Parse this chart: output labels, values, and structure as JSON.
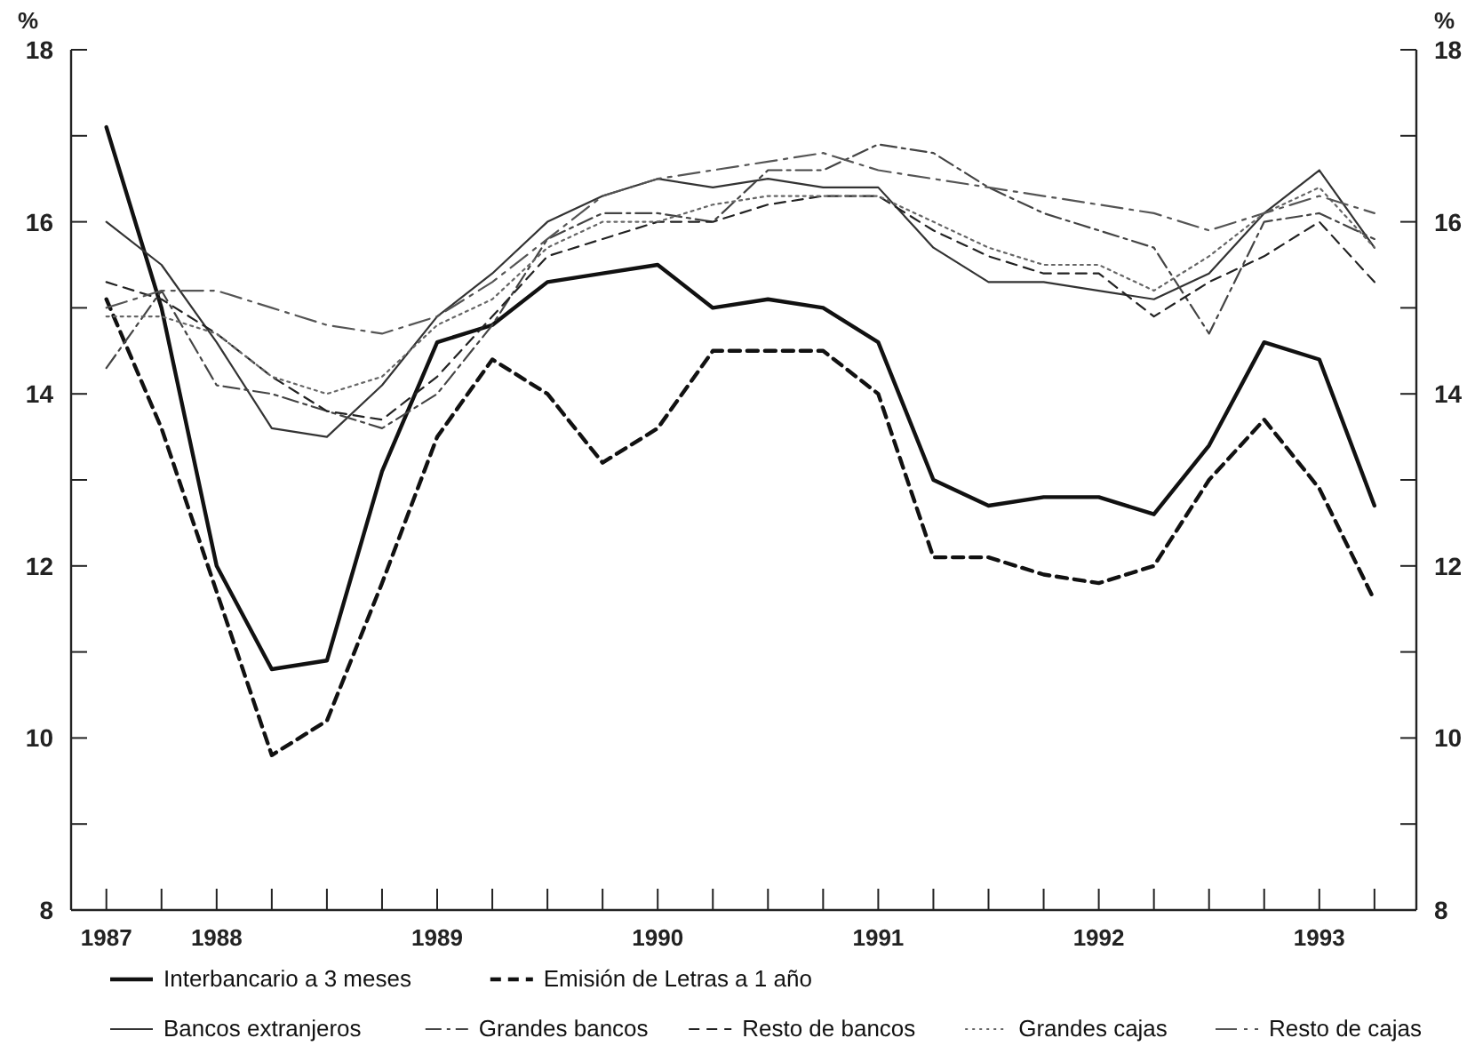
{
  "chart_data": {
    "type": "line",
    "ylabel": "%",
    "y2label": "%",
    "x": [
      1987.5,
      1987.75,
      1988,
      1988.25,
      1988.5,
      1988.75,
      1989,
      1989.25,
      1989.5,
      1989.75,
      1990,
      1990.25,
      1990.5,
      1990.75,
      1991,
      1991.25,
      1991.5,
      1991.75,
      1992,
      1992.25,
      1992.5,
      1992.75,
      1993,
      1993.25
    ],
    "xlim": [
      1987.34,
      1993.44
    ],
    "xticks": [
      {
        "value": 1987.5,
        "label": "1987"
      },
      {
        "value": 1987.75,
        "label": null
      },
      1988,
      {
        "value": 1988.25,
        "label": null
      },
      {
        "value": 1988.5,
        "label": null
      },
      {
        "value": 1988.75,
        "label": null
      },
      1989,
      {
        "value": 1989.25,
        "label": null
      },
      {
        "value": 1989.5,
        "label": null
      },
      {
        "value": 1989.75,
        "label": null
      },
      1990,
      {
        "value": 1990.25,
        "label": null
      },
      {
        "value": 1990.5,
        "label": null
      },
      {
        "value": 1990.75,
        "label": null
      },
      1991,
      {
        "value": 1991.25,
        "label": null
      },
      {
        "value": 1991.5,
        "label": null
      },
      {
        "value": 1991.75,
        "label": null
      },
      1992,
      {
        "value": 1992.25,
        "label": null
      },
      {
        "value": 1992.5,
        "label": null
      },
      {
        "value": 1992.75,
        "label": null
      },
      1993,
      {
        "value": 1993.25,
        "label": null
      }
    ],
    "ylim": [
      8,
      18
    ],
    "yticks": [
      8,
      {
        "value": 9,
        "label": null
      },
      10,
      {
        "value": 11,
        "label": null
      },
      12,
      {
        "value": 13,
        "label": null
      },
      14,
      {
        "value": 15,
        "label": null
      },
      16,
      {
        "value": 17,
        "label": null
      },
      18
    ],
    "y2lim": [
      8,
      18
    ],
    "y2ticks": [
      8,
      {
        "value": 9,
        "label": null
      },
      10,
      {
        "value": 11,
        "label": null
      },
      12,
      {
        "value": 13,
        "label": null
      },
      14,
      {
        "value": 15,
        "label": null
      },
      16,
      {
        "value": 17,
        "label": null
      },
      18
    ],
    "grid": false,
    "legend": "bottom",
    "marker": "none",
    "series": [
      {
        "name": "Interbancario a 3 meses",
        "color": "#111111",
        "line_style": "solid",
        "values": [
          17.1,
          15.0,
          12.0,
          10.8,
          10.9,
          13.1,
          14.6,
          14.8,
          15.3,
          15.4,
          15.5,
          15.0,
          15.1,
          15.0,
          14.6,
          13.0,
          12.7,
          12.8,
          12.8,
          12.6,
          13.4,
          14.6,
          14.4,
          12.7
        ]
      },
      {
        "name": "Emisión de Letras a 1 año",
        "color": "#111111",
        "line_style": "dashed",
        "values": [
          15.1,
          13.6,
          11.7,
          9.8,
          10.2,
          11.8,
          13.5,
          14.4,
          14.0,
          13.2,
          13.6,
          14.5,
          14.5,
          14.5,
          14.0,
          12.1,
          12.1,
          11.9,
          11.8,
          12.0,
          13.0,
          13.7,
          12.9,
          11.6
        ]
      },
      {
        "name": "Bancos extranjeros",
        "color": "#333333",
        "line_style": "solid",
        "values": [
          16.0,
          15.5,
          14.6,
          13.6,
          13.5,
          14.1,
          14.9,
          15.4,
          16.0,
          16.3,
          16.5,
          16.4,
          16.5,
          16.4,
          16.4,
          15.7,
          15.3,
          15.3,
          15.2,
          15.1,
          15.4,
          16.1,
          16.6,
          15.7
        ]
      },
      {
        "name": "Grandes bancos",
        "color": "#444444",
        "line_style": "dashed",
        "values": [
          14.3,
          15.2,
          14.1,
          14.0,
          13.8,
          13.6,
          14.0,
          14.8,
          15.8,
          16.1,
          16.1,
          16.0,
          16.6,
          16.6,
          16.9,
          16.8,
          16.4,
          16.1,
          15.9,
          15.7,
          14.7,
          16.0,
          16.1,
          15.8
        ]
      },
      {
        "name": "Resto de bancos",
        "color": "#222222",
        "line_style": "dashed",
        "values": [
          15.3,
          15.1,
          14.7,
          14.2,
          13.8,
          13.7,
          14.2,
          14.9,
          15.6,
          15.8,
          16.0,
          16.0,
          16.2,
          16.3,
          16.3,
          15.9,
          15.6,
          15.4,
          15.4,
          14.9,
          15.3,
          15.6,
          16.0,
          15.3
        ]
      },
      {
        "name": "Grandes cajas",
        "color": "#666666",
        "line_style": "dotted",
        "values": [
          14.9,
          14.9,
          14.7,
          14.2,
          14.0,
          14.2,
          14.8,
          15.1,
          15.7,
          16.0,
          16.0,
          16.2,
          16.3,
          16.3,
          16.3,
          16.0,
          15.7,
          15.5,
          15.5,
          15.2,
          15.6,
          16.1,
          16.4,
          15.7
        ]
      },
      {
        "name": "Resto de cajas",
        "color": "#555555",
        "line_style": "dashed",
        "values": [
          15.0,
          15.2,
          15.2,
          15.0,
          14.8,
          14.7,
          14.9,
          15.3,
          15.8,
          16.3,
          16.5,
          16.6,
          16.7,
          16.8,
          16.6,
          16.5,
          16.4,
          16.3,
          16.2,
          16.1,
          15.9,
          16.1,
          16.3,
          16.1
        ]
      }
    ]
  }
}
